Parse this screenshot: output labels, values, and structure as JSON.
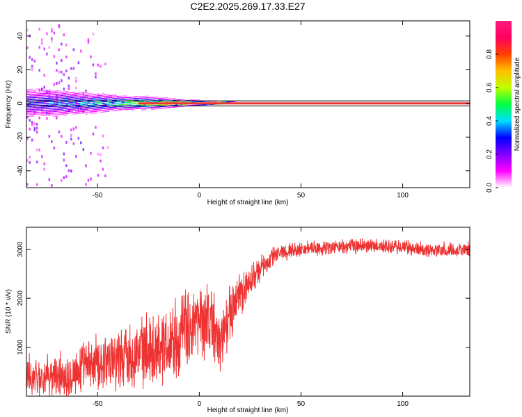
{
  "figure": {
    "title": "C2E2.2025.269.17.33.E27"
  },
  "chart_data": [
    {
      "type": "heatmap",
      "panel": "spectrogram",
      "xlabel": "Height of straight line (km)",
      "ylabel": "Frequency (Hz)",
      "xlim": [
        -85,
        133
      ],
      "ylim": [
        -50,
        49
      ],
      "xticks": [
        -50,
        0,
        50,
        100
      ],
      "yticks": [
        -40,
        -20,
        0,
        20,
        40
      ],
      "grid": false,
      "colorbar": {
        "label": "Normalized spectral amplitude",
        "range": [
          0,
          1
        ],
        "ticks": [
          "0.0",
          "0.2",
          "0.4",
          "0.6",
          "0.8"
        ]
      },
      "features": [
        {
          "name": "tone",
          "frequency_hz": 0,
          "x_range": [
            -85,
            133
          ]
        },
        {
          "name": "guide lines",
          "frequency_hz": [
            -1.5,
            1.5
          ],
          "x_range": [
            -85,
            133
          ]
        }
      ],
      "profile": {
        "x": [
          -85,
          -70,
          -55,
          -40,
          -25,
          -15,
          -5,
          5,
          15,
          20,
          30,
          133
        ],
        "broadband_halfwidth_hz": [
          10,
          9,
          7,
          5,
          4,
          3,
          2,
          1.5,
          1,
          0.8,
          0.8,
          0.8
        ],
        "peak_amplitude": [
          0.3,
          0.35,
          0.4,
          0.55,
          0.7,
          0.8,
          0.85,
          0.9,
          0.95,
          1.0,
          1.0,
          1.0
        ]
      }
    },
    {
      "type": "line",
      "panel": "snr",
      "xlabel": "Height of straight line (km)",
      "ylabel": "SNR (10 * v/v)",
      "xlim": [
        -85,
        133
      ],
      "ylim": [
        0,
        3450
      ],
      "xticks": [
        -50,
        0,
        50,
        100
      ],
      "yticks": [
        1000,
        2000,
        3000
      ],
      "grid": false,
      "series": [
        {
          "color": "#ee3333",
          "x": [
            -85,
            -75,
            -65,
            -55,
            -45,
            -35,
            -25,
            -15,
            -5,
            5,
            10,
            15,
            20,
            25,
            30,
            35,
            40,
            50,
            60,
            70,
            80,
            90,
            100,
            110,
            120,
            133
          ],
          "mean": [
            400,
            380,
            450,
            600,
            750,
            850,
            950,
            1100,
            1400,
            1600,
            1050,
            1700,
            2050,
            2350,
            2600,
            2800,
            2950,
            3000,
            3020,
            3050,
            3080,
            3060,
            3040,
            3000,
            2980,
            3000
          ],
          "spread": [
            350,
            350,
            400,
            450,
            500,
            550,
            600,
            650,
            700,
            650,
            550,
            500,
            400,
            300,
            220,
            180,
            150,
            130,
            130,
            130,
            130,
            130,
            130,
            130,
            130,
            130
          ]
        }
      ]
    }
  ],
  "colors": {
    "line": "#ee3333",
    "axis": "#000000",
    "guide_line": "#000000",
    "tone": "#ee3333",
    "colormap": [
      "#ffffff",
      "#ff00ff",
      "#8000ff",
      "#0000ff",
      "#00e0ff",
      "#00ff40",
      "#c0ff00",
      "#ffc000",
      "#ff4000",
      "#ff0060",
      "#ff1a80"
    ]
  }
}
